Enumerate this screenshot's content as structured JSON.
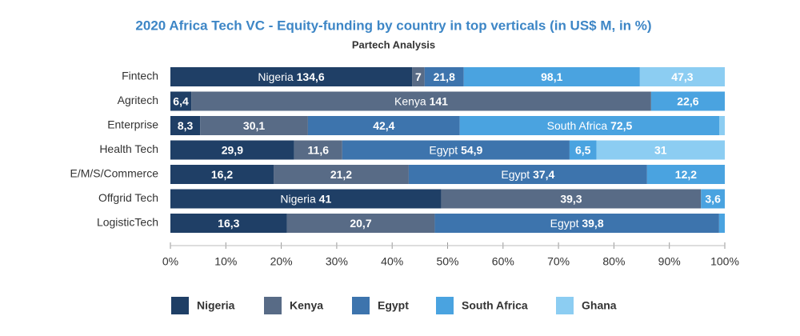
{
  "chart_data": {
    "type": "bar",
    "orientation": "horizontal",
    "stacking": "percent",
    "title": "2020 Africa Tech VC - Equity-funding by country in top verticals (in US$ M, in %)",
    "subtitle": "Partech Analysis",
    "categories": [
      "Fintech",
      "Agritech",
      "Enterprise",
      "Health Tech",
      "E/M/S/Commerce",
      "Offgrid Tech",
      "LogisticTech"
    ],
    "series": [
      {
        "name": "Nigeria",
        "color": "#1f3f66",
        "values": [
          134.6,
          6.4,
          8.3,
          29.9,
          16.2,
          41,
          16.3
        ],
        "value_labels": [
          "134,6",
          "6,4",
          "8,3",
          "29,9",
          "16,2",
          "41",
          "16,3"
        ]
      },
      {
        "name": "Kenya",
        "color": "#586b86",
        "values": [
          7,
          141,
          30.1,
          11.6,
          21.2,
          39.3,
          20.7
        ],
        "value_labels": [
          "7",
          "141",
          "30,1",
          "11,6",
          "21,2",
          "39,3",
          "20,7"
        ]
      },
      {
        "name": "Egypt",
        "color": "#3d74ad",
        "values": [
          21.8,
          null,
          42.4,
          54.9,
          37.4,
          null,
          39.8
        ],
        "value_labels": [
          "21,8",
          null,
          "42,4",
          "54,9",
          "37,4",
          null,
          "39,8"
        ]
      },
      {
        "name": "South Africa",
        "color": "#4aa3e0",
        "values": [
          98.1,
          22.6,
          72.5,
          6.5,
          12.2,
          3.6,
          0.8
        ],
        "value_labels": [
          "98,1",
          "22,6",
          "72,5",
          "6,5",
          "12,2",
          "3,6",
          null
        ]
      },
      {
        "name": "Ghana",
        "color": "#8ccdf2",
        "values": [
          47.3,
          null,
          1.5,
          31,
          null,
          null,
          null
        ],
        "value_labels": [
          "47,3",
          null,
          null,
          "31",
          null,
          null,
          null
        ]
      }
    ],
    "xlim": [
      0,
      100
    ],
    "xticks": [
      {
        "value": 0,
        "label": "0%"
      },
      {
        "value": 10,
        "label": "10%"
      },
      {
        "value": 20,
        "label": "20%"
      },
      {
        "value": 30,
        "label": "30%"
      },
      {
        "value": 40,
        "label": "40%"
      },
      {
        "value": 50,
        "label": "50%"
      },
      {
        "value": 60,
        "label": "60%"
      },
      {
        "value": 70,
        "label": "70%"
      },
      {
        "value": 80,
        "label": "80%"
      },
      {
        "value": 90,
        "label": "90%"
      },
      {
        "value": 100,
        "label": "100%"
      }
    ],
    "legend": "bottom"
  }
}
